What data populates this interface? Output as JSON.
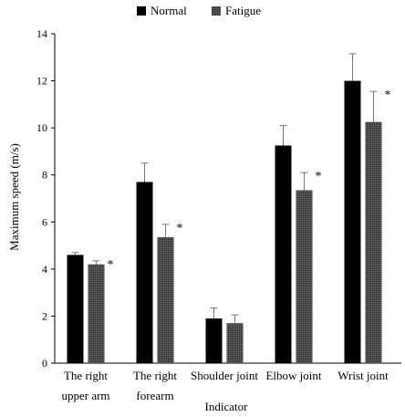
{
  "chart_data": {
    "type": "bar",
    "xlabel": "Indicator",
    "ylabel": "Maximum speed (m/s)",
    "ylim": [
      0,
      14
    ],
    "yticks": [
      0,
      2,
      4,
      6,
      8,
      10,
      12,
      14
    ],
    "grid": false,
    "legend_position": "top-center",
    "categories": [
      [
        "The right",
        "upper arm"
      ],
      [
        "The right",
        "forearm"
      ],
      [
        "Shoulder joint"
      ],
      [
        "Elbow joint"
      ],
      [
        "Wrist joint"
      ]
    ],
    "series": [
      {
        "name": "Normal",
        "values": [
          4.6,
          7.7,
          1.9,
          9.25,
          12.0
        ],
        "errors": [
          0.1,
          0.8,
          0.45,
          0.85,
          1.15
        ],
        "color": "#000000",
        "pattern": "solid"
      },
      {
        "name": "Fatigue",
        "values": [
          4.2,
          5.35,
          1.7,
          7.35,
          10.25
        ],
        "errors": [
          0.15,
          0.55,
          0.35,
          0.75,
          1.3
        ],
        "color": "#555555",
        "pattern": "dotted"
      }
    ],
    "significance_marker": "*",
    "significant": [
      true,
      true,
      false,
      true,
      true
    ]
  }
}
